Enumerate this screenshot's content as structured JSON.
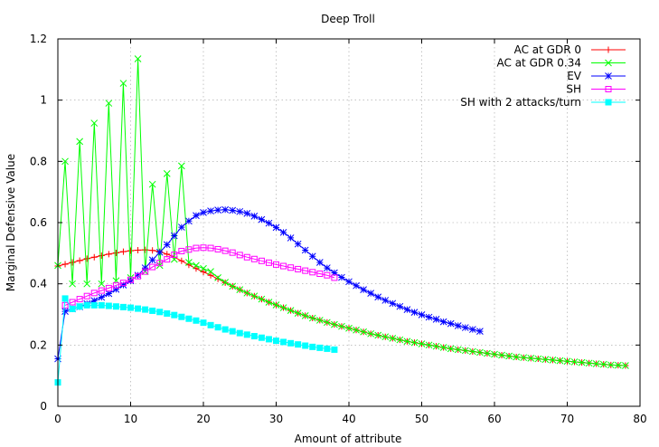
{
  "chart_data": {
    "type": "line",
    "title": "Deep Troll",
    "xlabel": "Amount of attribute",
    "ylabel": "Marginal Defensive Value",
    "xlim": [
      0,
      80
    ],
    "ylim": [
      0,
      1.2
    ],
    "x_ticks": [
      "0",
      "10",
      "20",
      "30",
      "40",
      "50",
      "60",
      "70",
      "80"
    ],
    "y_ticks": [
      "0",
      "0.2",
      "0.4",
      "0.6",
      "0.8",
      "1",
      "1.2"
    ],
    "grid": true,
    "legend_position": "top-right",
    "series": [
      {
        "name": "AC at GDR 0",
        "color": "#ff0000",
        "marker": "plus",
        "x": [
          0,
          1,
          2,
          3,
          4,
          5,
          6,
          7,
          8,
          9,
          10,
          11,
          12,
          13,
          14,
          15,
          16,
          17,
          18,
          19,
          20,
          21,
          22,
          23,
          24,
          25,
          26,
          27,
          28,
          29,
          30,
          31,
          32,
          33,
          34,
          35,
          36,
          37,
          38,
          39,
          40,
          41,
          42,
          43,
          44,
          45,
          46,
          47,
          48,
          49,
          50,
          51,
          52,
          53,
          54,
          55,
          56,
          57,
          58,
          59,
          60,
          61,
          62,
          63,
          64,
          65,
          66,
          67,
          68,
          69,
          70,
          71,
          72,
          73,
          74,
          75,
          76,
          77,
          78
        ],
        "y": [
          0.458,
          0.464,
          0.47,
          0.476,
          0.482,
          0.487,
          0.492,
          0.497,
          0.501,
          0.505,
          0.508,
          0.51,
          0.511,
          0.509,
          0.505,
          0.497,
          0.487,
          0.475,
          0.462,
          0.45,
          0.439,
          0.428,
          0.416,
          0.404,
          0.392,
          0.381,
          0.37,
          0.36,
          0.35,
          0.34,
          0.331,
          0.322,
          0.313,
          0.304,
          0.296,
          0.288,
          0.281,
          0.274,
          0.267,
          0.261,
          0.255,
          0.249,
          0.243,
          0.237,
          0.232,
          0.227,
          0.222,
          0.217,
          0.212,
          0.208,
          0.204,
          0.2,
          0.196,
          0.192,
          0.188,
          0.185,
          0.182,
          0.179,
          0.176,
          0.173,
          0.17,
          0.167,
          0.164,
          0.161,
          0.159,
          0.157,
          0.155,
          0.153,
          0.151,
          0.149,
          0.147,
          0.145,
          0.143,
          0.141,
          0.139,
          0.137,
          0.135,
          0.134,
          0.133
        ]
      },
      {
        "name": "AC at GDR 0.34",
        "color": "#00ff00",
        "marker": "cross",
        "x": [
          0,
          1,
          2,
          3,
          4,
          5,
          6,
          7,
          8,
          9,
          10,
          11,
          12,
          13,
          14,
          15,
          16,
          17,
          18,
          19,
          20,
          21,
          22,
          23,
          24,
          25,
          26,
          27,
          28,
          29,
          30,
          31,
          32,
          33,
          34,
          35,
          36,
          37,
          38,
          39,
          40,
          41,
          42,
          43,
          44,
          45,
          46,
          47,
          48,
          49,
          50,
          51,
          52,
          53,
          54,
          55,
          56,
          57,
          58,
          59,
          60,
          61,
          62,
          63,
          64,
          65,
          66,
          67,
          68,
          69,
          70,
          71,
          72,
          73,
          74,
          75,
          76,
          77,
          78
        ],
        "y": [
          0.46,
          0.8,
          0.4,
          0.865,
          0.4,
          0.925,
          0.4,
          0.99,
          0.41,
          1.055,
          0.42,
          1.135,
          0.44,
          0.725,
          0.46,
          0.76,
          0.48,
          0.785,
          0.47,
          0.46,
          0.45,
          0.44,
          0.42,
          0.405,
          0.392,
          0.381,
          0.37,
          0.36,
          0.35,
          0.34,
          0.331,
          0.322,
          0.313,
          0.304,
          0.296,
          0.288,
          0.281,
          0.274,
          0.267,
          0.261,
          0.255,
          0.249,
          0.243,
          0.237,
          0.232,
          0.227,
          0.222,
          0.217,
          0.212,
          0.208,
          0.204,
          0.2,
          0.196,
          0.192,
          0.188,
          0.185,
          0.182,
          0.179,
          0.176,
          0.173,
          0.17,
          0.167,
          0.164,
          0.161,
          0.159,
          0.157,
          0.155,
          0.153,
          0.151,
          0.149,
          0.147,
          0.145,
          0.143,
          0.141,
          0.139,
          0.137,
          0.135,
          0.134,
          0.133
        ]
      },
      {
        "name": "EV",
        "color": "#0000ff",
        "marker": "star",
        "x": [
          0,
          1,
          2,
          3,
          4,
          5,
          6,
          7,
          8,
          9,
          10,
          11,
          12,
          13,
          14,
          15,
          16,
          17,
          18,
          19,
          20,
          21,
          22,
          23,
          24,
          25,
          26,
          27,
          28,
          29,
          30,
          31,
          32,
          33,
          34,
          35,
          36,
          37,
          38,
          39,
          40,
          41,
          42,
          43,
          44,
          45,
          46,
          47,
          48,
          49,
          50,
          51,
          52,
          53,
          54,
          55,
          56,
          57,
          58
        ],
        "y": [
          0.155,
          0.31,
          0.318,
          0.325,
          0.335,
          0.345,
          0.356,
          0.368,
          0.382,
          0.396,
          0.41,
          0.428,
          0.452,
          0.478,
          0.503,
          0.528,
          0.557,
          0.585,
          0.605,
          0.623,
          0.633,
          0.638,
          0.641,
          0.642,
          0.64,
          0.636,
          0.63,
          0.621,
          0.61,
          0.598,
          0.584,
          0.568,
          0.55,
          0.53,
          0.51,
          0.49,
          0.47,
          0.452,
          0.436,
          0.421,
          0.407,
          0.394,
          0.381,
          0.369,
          0.357,
          0.346,
          0.336,
          0.326,
          0.316,
          0.307,
          0.299,
          0.291,
          0.284,
          0.276,
          0.27,
          0.263,
          0.257,
          0.251,
          0.245
        ]
      },
      {
        "name": "SH",
        "color": "#ff00ff",
        "marker": "square",
        "x": [
          1,
          2,
          3,
          4,
          5,
          6,
          7,
          8,
          9,
          10,
          11,
          12,
          13,
          14,
          15,
          16,
          17,
          18,
          19,
          20,
          21,
          22,
          23,
          24,
          25,
          26,
          27,
          28,
          29,
          30,
          31,
          32,
          33,
          34,
          35,
          36,
          37,
          38
        ],
        "y": [
          0.33,
          0.34,
          0.35,
          0.36,
          0.37,
          0.378,
          0.386,
          0.395,
          0.403,
          0.413,
          0.425,
          0.44,
          0.455,
          0.468,
          0.48,
          0.495,
          0.507,
          0.512,
          0.517,
          0.518,
          0.517,
          0.513,
          0.508,
          0.502,
          0.494,
          0.487,
          0.481,
          0.475,
          0.469,
          0.463,
          0.458,
          0.453,
          0.448,
          0.443,
          0.438,
          0.433,
          0.428,
          0.42
        ]
      },
      {
        "name": "SH with 2 attacks/turn",
        "color": "#00ffff",
        "marker": "filled-square",
        "x": [
          0,
          1,
          2,
          3,
          4,
          5,
          6,
          7,
          8,
          9,
          10,
          11,
          12,
          13,
          14,
          15,
          16,
          17,
          18,
          19,
          20,
          21,
          22,
          23,
          24,
          25,
          26,
          27,
          28,
          29,
          30,
          31,
          32,
          33,
          34,
          35,
          36,
          37,
          38
        ],
        "y": [
          0.078,
          0.352,
          0.318,
          0.326,
          0.33,
          0.33,
          0.33,
          0.328,
          0.326,
          0.324,
          0.322,
          0.319,
          0.316,
          0.312,
          0.308,
          0.303,
          0.298,
          0.292,
          0.286,
          0.28,
          0.273,
          0.265,
          0.258,
          0.251,
          0.245,
          0.239,
          0.234,
          0.229,
          0.224,
          0.219,
          0.214,
          0.21,
          0.206,
          0.202,
          0.198,
          0.194,
          0.191,
          0.188,
          0.185
        ]
      }
    ]
  }
}
